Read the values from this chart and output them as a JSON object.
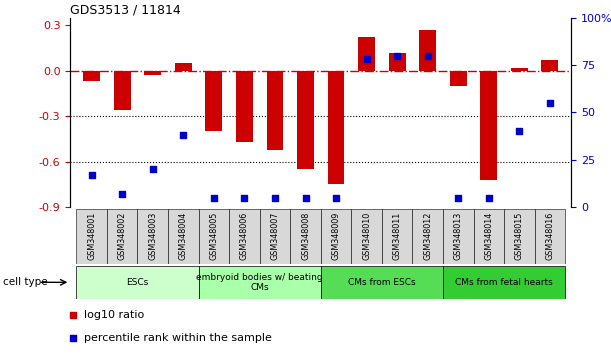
{
  "title": "GDS3513 / 11814",
  "samples": [
    "GSM348001",
    "GSM348002",
    "GSM348003",
    "GSM348004",
    "GSM348005",
    "GSM348006",
    "GSM348007",
    "GSM348008",
    "GSM348009",
    "GSM348010",
    "GSM348011",
    "GSM348012",
    "GSM348013",
    "GSM348014",
    "GSM348015",
    "GSM348016"
  ],
  "log10_ratio": [
    -0.07,
    -0.26,
    -0.03,
    0.05,
    -0.4,
    -0.47,
    -0.52,
    -0.65,
    -0.75,
    0.22,
    0.12,
    0.27,
    -0.1,
    -0.72,
    0.02,
    0.07
  ],
  "percentile_rank": [
    17,
    7,
    20,
    38,
    5,
    5,
    5,
    5,
    5,
    78,
    80,
    80,
    5,
    5,
    40,
    55
  ],
  "bar_color": "#cc0000",
  "dot_color": "#0000cc",
  "ref_line_color": "#cc0000",
  "grid_color": "#000000",
  "ylim_left": [
    -0.9,
    0.35
  ],
  "ylim_right": [
    0,
    100
  ],
  "yticks_left": [
    -0.9,
    -0.6,
    -0.3,
    0.0,
    0.3
  ],
  "yticks_right": [
    0,
    25,
    50,
    75,
    100
  ],
  "ytick_labels_right": [
    "0",
    "25",
    "50",
    "75",
    "100%"
  ],
  "cell_groups": [
    {
      "label": "ESCs",
      "start": 0,
      "end": 3,
      "color": "#ccffcc"
    },
    {
      "label": "embryoid bodies w/ beating\nCMs",
      "start": 4,
      "end": 7,
      "color": "#aaffaa"
    },
    {
      "label": "CMs from ESCs",
      "start": 8,
      "end": 11,
      "color": "#55dd55"
    },
    {
      "label": "CMs from fetal hearts",
      "start": 12,
      "end": 15,
      "color": "#33cc33"
    }
  ],
  "cell_type_label": "cell type",
  "legend_items": [
    {
      "color": "#cc0000",
      "label": "log10 ratio"
    },
    {
      "color": "#0000cc",
      "label": "percentile rank within the sample"
    }
  ],
  "fig_width": 6.11,
  "fig_height": 3.54,
  "dpi": 100
}
